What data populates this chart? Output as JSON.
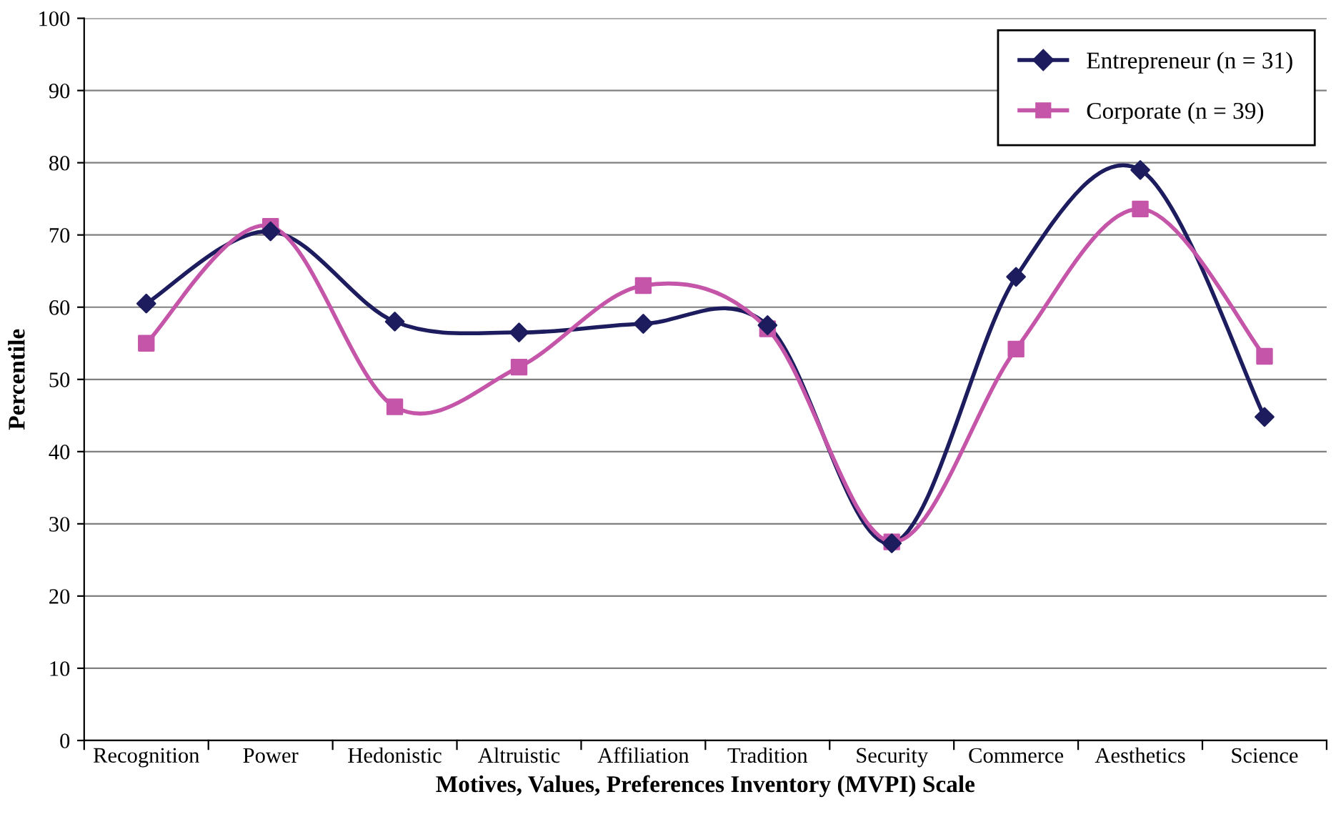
{
  "chart_data": {
    "type": "line",
    "xlabel": "Motives, Values, Preferences Inventory (MVPI) Scale",
    "ylabel": "Percentile",
    "categories": [
      "Recognition",
      "Power",
      "Hedonistic",
      "Altruistic",
      "Affiliation",
      "Tradition",
      "Security",
      "Commerce",
      "Aesthetics",
      "Science"
    ],
    "series": [
      {
        "name": "Entrepreneur (n = 31)",
        "color": "#1c1c5e",
        "marker": "diamond",
        "values": [
          60.5,
          70.5,
          58,
          56.5,
          57.7,
          57.5,
          27.3,
          64.2,
          79,
          44.8
        ]
      },
      {
        "name": "Corporate (n = 39)",
        "color": "#c455a8",
        "marker": "square",
        "values": [
          55,
          71.2,
          46.2,
          51.7,
          63,
          57,
          27.5,
          54.2,
          73.6,
          53.2
        ]
      }
    ],
    "ylim": [
      0,
      100
    ],
    "yticks": [
      0,
      10,
      20,
      30,
      40,
      50,
      60,
      70,
      80,
      90,
      100
    ],
    "grid": "y",
    "legend": "top right"
  }
}
